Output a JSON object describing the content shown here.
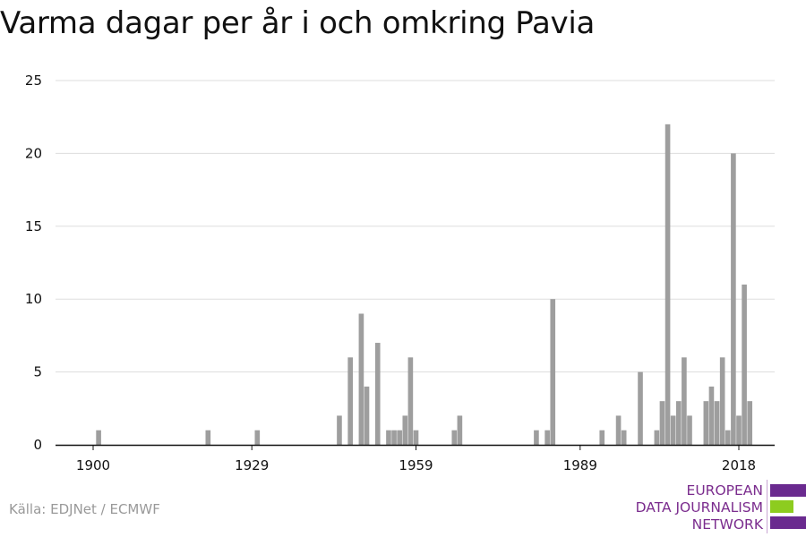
{
  "title": "Varma dagar per år i och omkring Pavia",
  "source": "Källa: EDJNet / ECMWF",
  "logo": {
    "lines": [
      "EUROPEAN",
      "DATA JOURNALISM",
      "NETWORK"
    ],
    "colors": {
      "purple": "#6a2a8f",
      "green": "#8dcc1f"
    }
  },
  "colors": {
    "bar": "#9e9e9e",
    "grid": "#dddddd",
    "axis": "#111111",
    "text": "#111111"
  },
  "chart_data": {
    "type": "bar",
    "title": "Varma dagar per år i och omkring Pavia",
    "xlabel": "",
    "ylabel": "",
    "xlim": [
      1900,
      2018
    ],
    "ylim": [
      0,
      25
    ],
    "yticks": [
      0,
      5,
      10,
      15,
      20,
      25
    ],
    "xticks": [
      1900,
      1929,
      1959,
      1989,
      2018
    ],
    "grid": true,
    "x": [
      1901,
      1921,
      1930,
      1945,
      1947,
      1949,
      1950,
      1952,
      1954,
      1955,
      1956,
      1957,
      1958,
      1959,
      1966,
      1967,
      1981,
      1983,
      1984,
      1993,
      1996,
      1997,
      2000,
      2003,
      2004,
      2005,
      2006,
      2007,
      2008,
      2009,
      2012,
      2013,
      2014,
      2015,
      2016,
      2017,
      2018,
      2019,
      2020
    ],
    "values": [
      1,
      1,
      1,
      2,
      6,
      9,
      4,
      7,
      1,
      1,
      1,
      2,
      6,
      1,
      1,
      2,
      1,
      1,
      10,
      1,
      2,
      1,
      5,
      1,
      3,
      22,
      2,
      3,
      6,
      2,
      3,
      4,
      3,
      6,
      1,
      20,
      2,
      11,
      3
    ]
  }
}
